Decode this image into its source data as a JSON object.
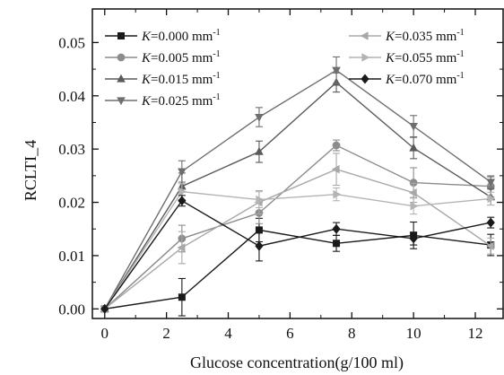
{
  "chart_data": {
    "type": "line",
    "xlabel": "Glucose concentration(g/100 ml)",
    "ylabel": "RCLTI_4",
    "xlim": [
      -0.4,
      12.9
    ],
    "ylim": [
      -0.0018,
      0.0563
    ],
    "x_ticks": [
      0,
      2,
      4,
      6,
      8,
      10,
      12
    ],
    "x_tick_labels": [
      "0",
      "2",
      "4",
      "6",
      "8",
      "10",
      "12"
    ],
    "y_ticks": [
      0.0,
      0.01,
      0.02,
      0.03,
      0.04,
      0.05
    ],
    "y_tick_labels": [
      "0.00",
      "0.01",
      "0.02",
      "0.03",
      "0.04",
      "0.05"
    ],
    "x": [
      0,
      2.5,
      5,
      7.5,
      10,
      12.5
    ],
    "grid": false,
    "legend_position": "top, two columns",
    "series": [
      {
        "name": "K=0.000 mm-1",
        "k_prefix": "K",
        "k_value": "=0.000 mm",
        "k_exp": "-1",
        "color": "#1a1a1a",
        "marker": "square",
        "values": [
          0.0,
          0.0022,
          0.0148,
          0.0123,
          0.0138,
          0.012
        ],
        "errors": [
          0,
          0.0035,
          0.0022,
          0.0015,
          0.0025,
          0.002
        ]
      },
      {
        "name": "K=0.005 mm-1",
        "k_prefix": "K",
        "k_value": "=0.005 mm",
        "k_exp": "-1",
        "color": "#8c8c8c",
        "marker": "circle",
        "values": [
          0.0,
          0.0132,
          0.018,
          0.0307,
          0.0237,
          0.023
        ],
        "errors": [
          0,
          0.0025,
          0.002,
          0.001,
          0.0028,
          0.002
        ]
      },
      {
        "name": "K=0.015 mm-1",
        "k_prefix": "K",
        "k_value": "=0.015 mm",
        "k_exp": "-1",
        "color": "#5a5a5a",
        "marker": "triangle-up",
        "values": [
          0.0,
          0.023,
          0.0295,
          0.0425,
          0.0302,
          0.021
        ],
        "errors": [
          0,
          0.0025,
          0.002,
          0.0018,
          0.002,
          0.0015
        ]
      },
      {
        "name": "K=0.025 mm-1",
        "k_prefix": "K",
        "k_value": "=0.025 mm",
        "k_exp": "-1",
        "color": "#6e6e6e",
        "marker": "triangle-down",
        "values": [
          0.0,
          0.0258,
          0.036,
          0.0448,
          0.0343,
          0.0238
        ],
        "errors": [
          0,
          0.002,
          0.0018,
          0.0025,
          0.002,
          0.001
        ]
      },
      {
        "name": "K=0.035 mm-1",
        "k_prefix": "K",
        "k_value": "=0.035 mm",
        "k_exp": "-1",
        "color": "#a8a8a8",
        "marker": "triangle-left",
        "values": [
          0.0,
          0.0115,
          0.02,
          0.0262,
          0.0218,
          0.0118
        ],
        "errors": [
          0,
          0.003,
          0.0022,
          0.003,
          0.0018,
          0.0015
        ]
      },
      {
        "name": "K=0.055 mm-1",
        "k_prefix": "K",
        "k_value": "=0.055 mm",
        "k_exp": "-1",
        "color": "#b4b4b4",
        "marker": "triangle-right",
        "values": [
          0.0,
          0.022,
          0.0205,
          0.0215,
          0.0193,
          0.0207
        ],
        "errors": [
          0,
          0.0015,
          0.0015,
          0.0012,
          0.0015,
          0.0012
        ]
      },
      {
        "name": "K=0.070 mm-1",
        "k_prefix": "K",
        "k_value": "=0.070 mm",
        "k_exp": "-1",
        "color": "#1a1a1a",
        "marker": "diamond",
        "values": [
          0.0,
          0.0203,
          0.0118,
          0.015,
          0.0132,
          0.0162
        ],
        "errors": [
          0,
          0.001,
          0.0028,
          0.0012,
          0.0012,
          0.001
        ]
      }
    ]
  }
}
